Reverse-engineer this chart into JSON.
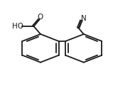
{
  "bg_color": "#ffffff",
  "line_color": "#1a1a1a",
  "line_width": 1.3,
  "font_size_labels": 7.5,
  "label_O": "O",
  "label_HO": "HO",
  "label_N": "N",
  "r1cx": 0.3,
  "r1cy": 0.47,
  "r2cx": 0.62,
  "r2cy": 0.47,
  "R": 0.155
}
